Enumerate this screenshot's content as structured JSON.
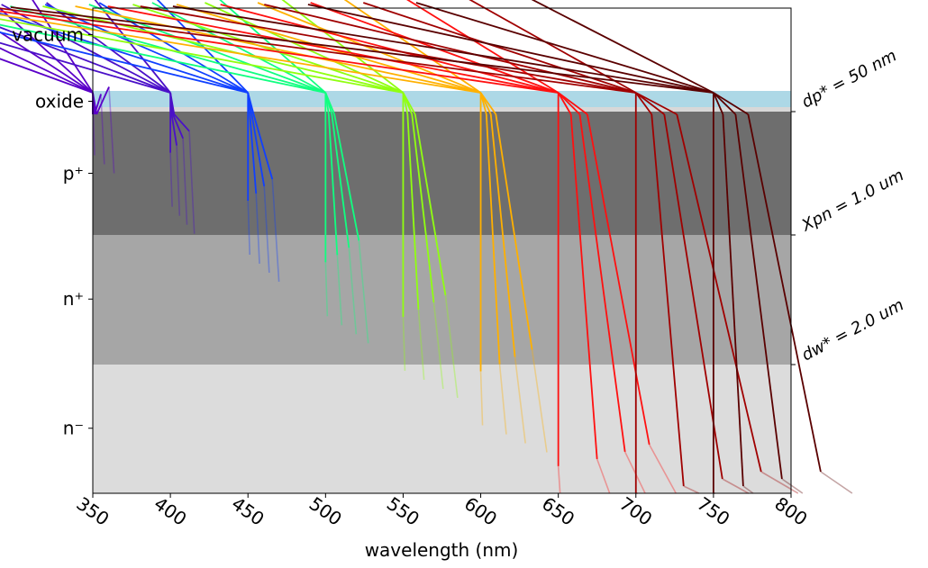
{
  "chart_data": {
    "type": "line",
    "title": "",
    "xlabel": "wavelength (nm)",
    "ylabel": "",
    "xlim": [
      350,
      800
    ],
    "xticks": [
      350,
      400,
      450,
      500,
      550,
      600,
      650,
      700,
      750,
      800
    ],
    "xtick_labels": [
      "350",
      "400",
      "450",
      "500",
      "550",
      "600",
      "650",
      "700",
      "750",
      "800"
    ],
    "layers": [
      {
        "name": "vacuum",
        "label": "vacuum",
        "color": "#ffffff",
        "y_top": 0,
        "y_bottom": 1
      },
      {
        "name": "oxide",
        "label": "oxide",
        "color": "#add8e6",
        "y_top": 1,
        "y_bottom": 1.1
      },
      {
        "name": "p-plus",
        "label": "p⁺",
        "color": "#6e6e6e",
        "y_top": 1.1,
        "y_bottom": 2.0
      },
      {
        "name": "n-plus",
        "label": "n⁺",
        "color": "#a6a6a6",
        "y_top": 2.0,
        "y_bottom": 2.95
      },
      {
        "name": "n-minus",
        "label": "n⁻",
        "color": "#dcdcdc",
        "y_top": 2.95,
        "y_bottom": 3.9
      }
    ],
    "right_annotations": [
      {
        "name": "dp-annotation",
        "text": "dp* = 50 nm",
        "boundary": 1.1
      },
      {
        "name": "xpn-annotation",
        "text": "Xpn = 1.0 um",
        "boundary": 2.0
      },
      {
        "name": "dw-annotation",
        "text": "dw* = 2.0 um",
        "boundary": 2.95
      }
    ],
    "series": [
      {
        "name": "350 nm",
        "wavelength": 350,
        "color": "#5a00c8",
        "bottom": 1.05,
        "spread": [
          0,
          6,
          12
        ]
      },
      {
        "name": "400 nm",
        "wavelength": 400,
        "color": "#4a10c8",
        "bottom": 1.4,
        "spread": [
          0,
          4,
          8,
          12
        ]
      },
      {
        "name": "450 nm",
        "wavelength": 450,
        "color": "#1040ff",
        "bottom": 1.75,
        "spread": [
          0,
          6,
          12,
          18
        ]
      },
      {
        "name": "500 nm",
        "wavelength": 500,
        "color": "#10ff80",
        "bottom": 2.2,
        "spread": [
          0,
          10,
          20,
          28
        ]
      },
      {
        "name": "550 nm",
        "wavelength": 550,
        "color": "#90ff10",
        "bottom": 2.6,
        "spread": [
          0,
          14,
          28,
          38
        ]
      },
      {
        "name": "600 nm",
        "wavelength": 600,
        "color": "#ffb000",
        "bottom": 3.0,
        "spread": [
          0,
          18,
          32,
          48
        ]
      },
      {
        "name": "650 nm",
        "wavelength": 650,
        "color": "#ff1010",
        "bottom": 3.7,
        "spread": [
          0,
          40,
          68,
          92
        ]
      },
      {
        "name": "700 nm",
        "wavelength": 700,
        "color": "#a00000",
        "bottom": 3.9,
        "spread": [
          0,
          50,
          90,
          130
        ]
      },
      {
        "name": "750 nm",
        "wavelength": 750,
        "color": "#5a0000",
        "bottom": 3.9,
        "spread": [
          0,
          30,
          70,
          110
        ]
      }
    ]
  }
}
